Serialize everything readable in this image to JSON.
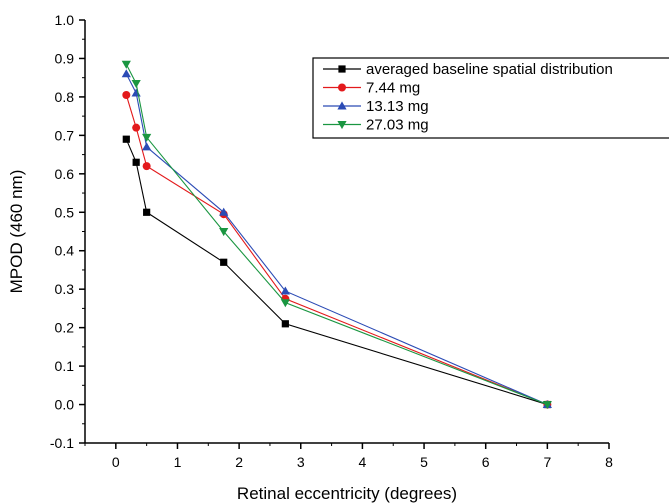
{
  "chart_data": {
    "type": "line",
    "xlabel": "Retinal eccentricity (degrees)",
    "ylabel": "MPOD (460 nm)",
    "xlim": [
      -0.5,
      8
    ],
    "ylim": [
      -0.1,
      1.0
    ],
    "x_ticks": [
      0,
      1,
      2,
      3,
      4,
      5,
      6,
      7,
      8
    ],
    "x_tick_labels": [
      "0",
      "1",
      "2",
      "3",
      "4",
      "5",
      "6",
      "7",
      "8"
    ],
    "y_ticks": [
      -0.1,
      0.0,
      0.1,
      0.2,
      0.3,
      0.4,
      0.5,
      0.6,
      0.7,
      0.8,
      0.9,
      1.0
    ],
    "y_tick_labels": [
      "-0.1",
      "0.0",
      "0.1",
      "0.2",
      "0.3",
      "0.4",
      "0.5",
      "0.6",
      "0.7",
      "0.8",
      "0.9",
      "1.0"
    ],
    "grid": false,
    "legend_position": "top-right",
    "series": [
      {
        "name": "averaged baseline spatial distribution",
        "color": "#000000",
        "marker": "square",
        "x": [
          0.17,
          0.33,
          0.5,
          1.75,
          2.75,
          7
        ],
        "y": [
          0.69,
          0.63,
          0.5,
          0.37,
          0.21,
          0.0
        ]
      },
      {
        "name": "7.44 mg",
        "color": "#e31a1c",
        "marker": "circle",
        "x": [
          0.17,
          0.33,
          0.5,
          1.75,
          2.75,
          7
        ],
        "y": [
          0.805,
          0.72,
          0.62,
          0.495,
          0.275,
          0.0
        ]
      },
      {
        "name": "13.13 mg",
        "color": "#2b4bb5",
        "marker": "triangle-up",
        "x": [
          0.17,
          0.33,
          0.5,
          1.75,
          2.75,
          7
        ],
        "y": [
          0.86,
          0.81,
          0.67,
          0.5,
          0.295,
          0.0
        ]
      },
      {
        "name": "27.03 mg",
        "color": "#1a9641",
        "marker": "triangle-down",
        "x": [
          0.17,
          0.33,
          0.5,
          1.75,
          2.75,
          7
        ],
        "y": [
          0.885,
          0.835,
          0.695,
          0.45,
          0.265,
          0.0
        ]
      }
    ]
  }
}
